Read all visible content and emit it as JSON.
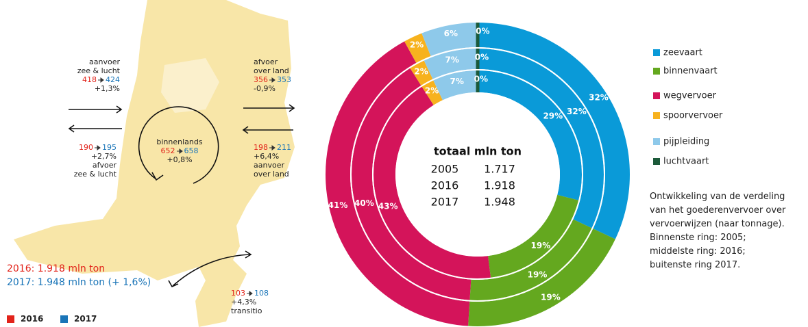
{
  "chart_data": {
    "type": "donut",
    "categories": [
      "zeevaart",
      "binnenvaart",
      "wegvervoer",
      "spoorvervoer",
      "pijpleiding",
      "luchtvaart"
    ],
    "colors": [
      "#0a9ad8",
      "#64a81f",
      "#d4145a",
      "#f7b21e",
      "#8ec9ea",
      "#1c5a3a"
    ],
    "series": [
      {
        "values": [
          29,
          19,
          43,
          2,
          7,
          0
        ],
        "value_labels": [
          "29%",
          "19%",
          "43%",
          "2%",
          "7%",
          "0%"
        ]
      },
      {
        "values": [
          32,
          19,
          40,
          2,
          7,
          0
        ],
        "value_labels": [
          "32%",
          "19%",
          "40%",
          "2%",
          "7%",
          "0%"
        ]
      },
      {
        "values": [
          32,
          19,
          41,
          2,
          6,
          0
        ],
        "value_labels": [
          "32%",
          "19%",
          "41%",
          "2%",
          "6%",
          "0%"
        ]
      }
    ],
    "center": {
      "title": "totaal mln ton",
      "rows": [
        [
          "2005",
          "1.717"
        ],
        [
          "2016",
          "1.918"
        ],
        [
          "2017",
          "1.948"
        ]
      ]
    },
    "note": [
      "Ontwikkeling van de verdeling",
      "van het goederenvervoer over",
      "vervoerwijzen (naar tonnage).",
      "Binnenste ring: 2005;",
      "middelste ring: 2016;",
      "buitenste ring 2017."
    ]
  },
  "map": {
    "flows": [
      {
        "before": [
          "aanvoer",
          "zee & lucht"
        ],
        "from": "418",
        "to": "424",
        "change": "+1,3%"
      },
      {
        "before": [
          "afvoer",
          "over land"
        ],
        "from": "356",
        "to": "353",
        "change": "-0,9%"
      },
      {
        "before": [
          "binnenlands"
        ],
        "from": "652",
        "to": "658",
        "change": "+0,8%"
      },
      {
        "from": "190",
        "to": "195",
        "change": "+2,7%",
        "after": [
          "afvoer",
          "zee & lucht"
        ]
      },
      {
        "from": "198",
        "to": "211",
        "change": "+6,4%",
        "after": [
          "aanvoer",
          "over land"
        ]
      },
      {
        "from": "103",
        "to": "108",
        "change": "+4,3%",
        "after": [
          "transitio"
        ]
      }
    ],
    "totals": [
      "2016: 1.918 mln ton",
      "2017: 1.948 mln ton (+ 1,6%)"
    ],
    "legend": [
      {
        "name": "2016",
        "color": "#e2231a"
      },
      {
        "name": "2017",
        "color": "#1a75b8"
      }
    ]
  }
}
